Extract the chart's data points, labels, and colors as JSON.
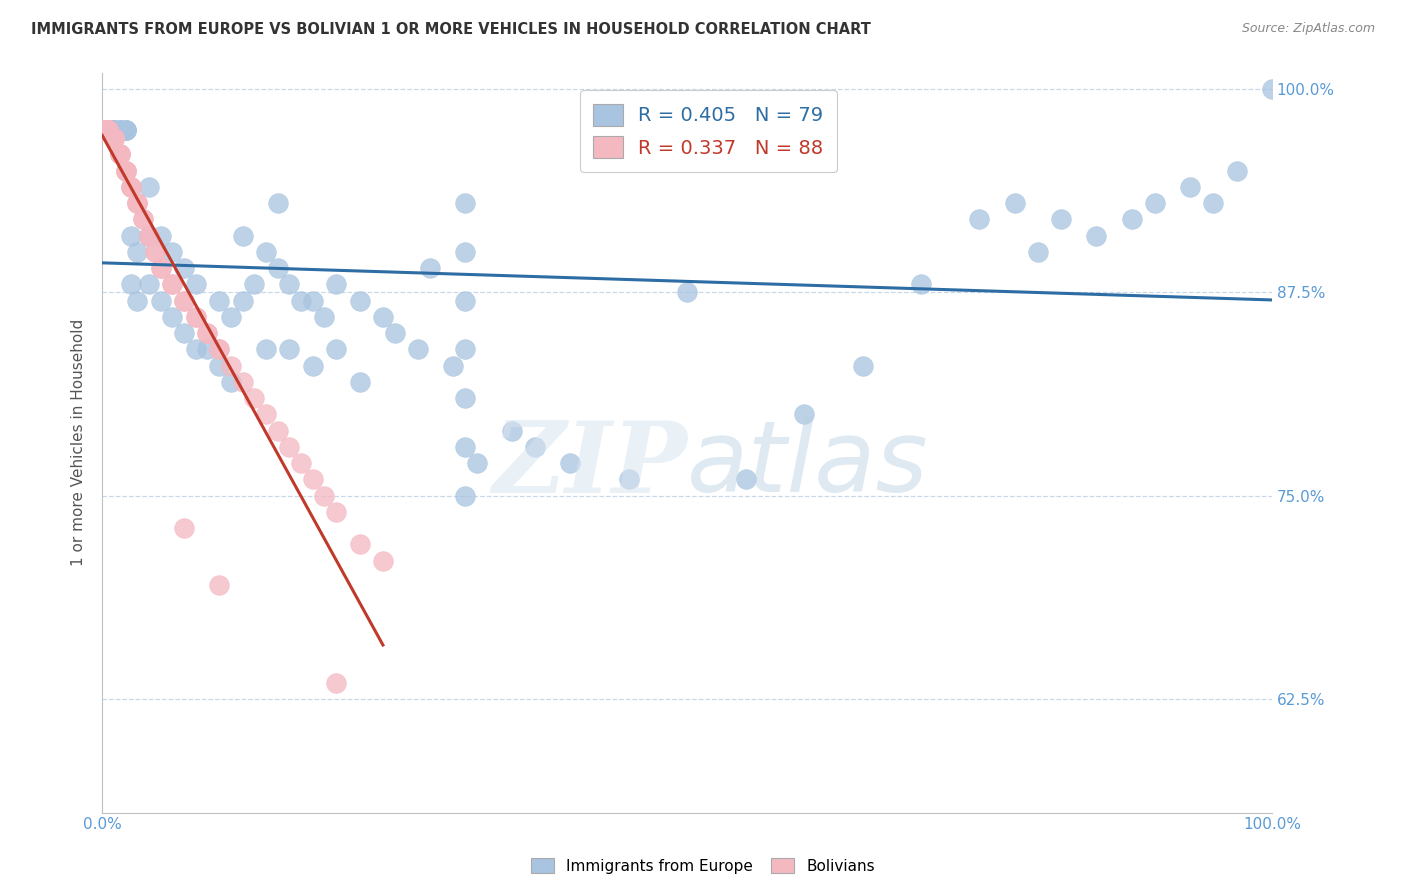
{
  "title": "IMMIGRANTS FROM EUROPE VS BOLIVIAN 1 OR MORE VEHICLES IN HOUSEHOLD CORRELATION CHART",
  "source": "Source: ZipAtlas.com",
  "ylabel": "1 or more Vehicles in Household",
  "xlim": [
    0.0,
    1.0
  ],
  "ylim": [
    0.555,
    1.01
  ],
  "yticks": [
    0.625,
    0.75,
    0.875,
    1.0
  ],
  "ytick_labels": [
    "62.5%",
    "75.0%",
    "87.5%",
    "100.0%"
  ],
  "xticks": [
    0.0,
    0.1,
    0.2,
    0.3,
    0.4,
    0.5,
    0.6,
    0.7,
    0.8,
    0.9,
    1.0
  ],
  "xtick_labels": [
    "0.0%",
    "",
    "",
    "",
    "",
    "",
    "",
    "",
    "",
    "",
    "100.0%"
  ],
  "legend_blue_R": "0.405",
  "legend_blue_N": "79",
  "legend_pink_R": "0.337",
  "legend_pink_N": "88",
  "blue_color": "#a8c4e0",
  "pink_color": "#f4b8c1",
  "blue_line_color": "#2e6da4",
  "pink_line_color": "#c0392b",
  "background_color": "#ffffff",
  "blue_points_x": [
    0.005,
    0.005,
    0.005,
    0.005,
    0.005,
    0.01,
    0.01,
    0.01,
    0.01,
    0.015,
    0.015,
    0.015,
    0.02,
    0.02,
    0.02,
    0.02,
    0.025,
    0.025,
    0.03,
    0.03,
    0.04,
    0.04,
    0.04,
    0.05,
    0.05,
    0.06,
    0.06,
    0.07,
    0.07,
    0.08,
    0.08,
    0.09,
    0.1,
    0.1,
    0.11,
    0.11,
    0.12,
    0.12,
    0.13,
    0.14,
    0.14,
    0.15,
    0.15,
    0.16,
    0.16,
    0.17,
    0.18,
    0.18,
    0.19,
    0.2,
    0.2,
    0.22,
    0.22,
    0.24,
    0.25,
    0.27,
    0.28,
    0.3,
    0.31,
    0.31,
    0.31,
    0.31,
    0.31,
    0.31,
    0.31,
    0.32,
    0.35,
    0.37,
    0.4,
    0.45,
    0.5,
    0.55,
    0.6,
    0.65,
    0.7,
    0.75,
    0.78,
    0.8,
    0.82,
    0.85,
    0.88,
    0.9,
    0.93,
    0.95,
    0.97,
    1.0
  ],
  "blue_points_y": [
    0.975,
    0.975,
    0.975,
    0.975,
    0.975,
    0.975,
    0.975,
    0.975,
    0.975,
    0.975,
    0.975,
    0.975,
    0.975,
    0.975,
    0.975,
    0.975,
    0.91,
    0.88,
    0.87,
    0.9,
    0.88,
    0.91,
    0.94,
    0.87,
    0.91,
    0.86,
    0.9,
    0.85,
    0.89,
    0.84,
    0.88,
    0.84,
    0.83,
    0.87,
    0.82,
    0.86,
    0.87,
    0.91,
    0.88,
    0.84,
    0.9,
    0.89,
    0.93,
    0.84,
    0.88,
    0.87,
    0.83,
    0.87,
    0.86,
    0.84,
    0.88,
    0.82,
    0.87,
    0.86,
    0.85,
    0.84,
    0.89,
    0.83,
    0.75,
    0.78,
    0.81,
    0.84,
    0.87,
    0.9,
    0.93,
    0.77,
    0.79,
    0.78,
    0.77,
    0.76,
    0.875,
    0.76,
    0.8,
    0.83,
    0.88,
    0.92,
    0.93,
    0.9,
    0.92,
    0.91,
    0.92,
    0.93,
    0.94,
    0.93,
    0.95,
    1.0
  ],
  "pink_points_x": [
    0.0,
    0.0,
    0.0,
    0.0,
    0.0,
    0.0,
    0.0,
    0.0,
    0.0,
    0.0,
    0.0,
    0.0,
    0.0,
    0.0,
    0.0,
    0.0,
    0.0,
    0.0,
    0.0,
    0.0,
    0.0,
    0.0,
    0.0,
    0.0,
    0.0,
    0.005,
    0.005,
    0.005,
    0.005,
    0.005,
    0.005,
    0.005,
    0.005,
    0.005,
    0.005,
    0.01,
    0.01,
    0.01,
    0.01,
    0.01,
    0.015,
    0.015,
    0.015,
    0.015,
    0.02,
    0.02,
    0.02,
    0.02,
    0.025,
    0.025,
    0.025,
    0.03,
    0.03,
    0.03,
    0.035,
    0.035,
    0.04,
    0.04,
    0.045,
    0.045,
    0.05,
    0.05,
    0.06,
    0.06,
    0.07,
    0.07,
    0.08,
    0.08,
    0.09,
    0.09,
    0.1,
    0.1,
    0.11,
    0.12,
    0.13,
    0.14,
    0.15,
    0.16,
    0.17,
    0.18,
    0.19,
    0.2,
    0.22,
    0.24,
    0.07,
    0.1,
    0.2
  ],
  "pink_points_y": [
    0.975,
    0.975,
    0.975,
    0.975,
    0.975,
    0.975,
    0.975,
    0.975,
    0.975,
    0.975,
    0.975,
    0.975,
    0.975,
    0.975,
    0.975,
    0.975,
    0.975,
    0.975,
    0.975,
    0.975,
    0.975,
    0.975,
    0.975,
    0.975,
    0.975,
    0.975,
    0.975,
    0.975,
    0.975,
    0.975,
    0.975,
    0.975,
    0.975,
    0.975,
    0.975,
    0.97,
    0.97,
    0.97,
    0.97,
    0.97,
    0.96,
    0.96,
    0.96,
    0.96,
    0.95,
    0.95,
    0.95,
    0.95,
    0.94,
    0.94,
    0.94,
    0.93,
    0.93,
    0.93,
    0.92,
    0.92,
    0.91,
    0.91,
    0.9,
    0.9,
    0.89,
    0.89,
    0.88,
    0.88,
    0.87,
    0.87,
    0.86,
    0.86,
    0.85,
    0.85,
    0.84,
    0.84,
    0.83,
    0.82,
    0.81,
    0.8,
    0.79,
    0.78,
    0.77,
    0.76,
    0.75,
    0.74,
    0.72,
    0.71,
    0.73,
    0.695,
    0.635
  ]
}
